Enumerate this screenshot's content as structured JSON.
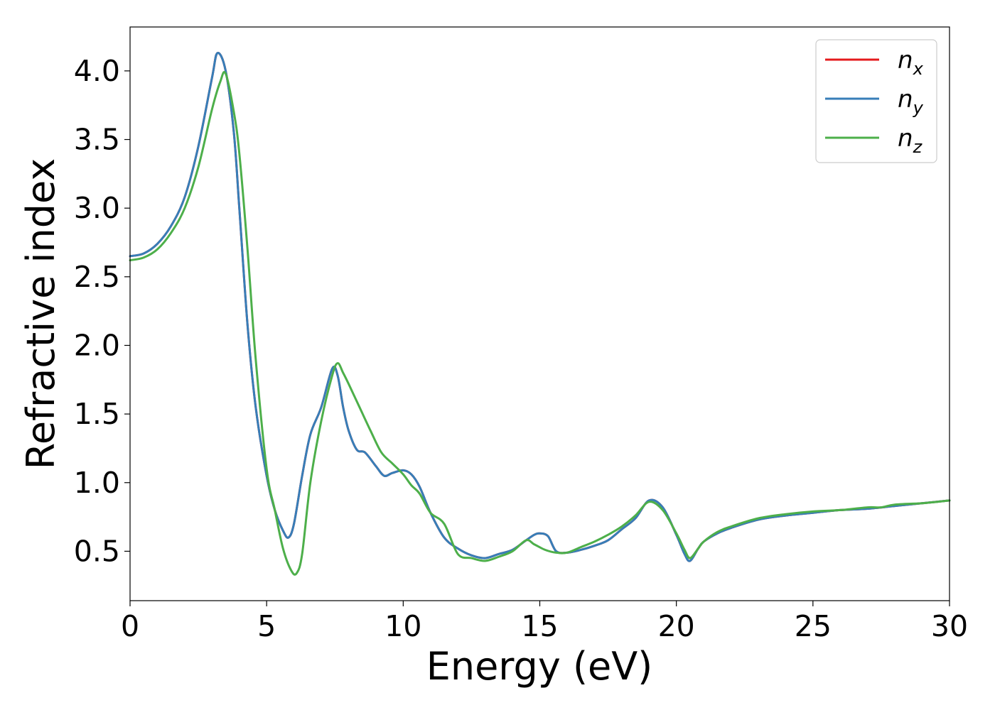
{
  "chart_data": {
    "type": "line",
    "title": "",
    "xlabel": "Energy (eV)",
    "ylabel": "Refractive index",
    "xlim": [
      0,
      30
    ],
    "ylim": [
      0.14,
      4.32
    ],
    "xticks": [
      0,
      5,
      10,
      15,
      20,
      25,
      30
    ],
    "xtick_labels": [
      "0",
      "5",
      "10",
      "15",
      "20",
      "25",
      "30"
    ],
    "yticks": [
      0.5,
      1.0,
      1.5,
      2.0,
      2.5,
      3.0,
      3.5,
      4.0
    ],
    "ytick_labels": [
      "0.5",
      "1.0",
      "1.5",
      "2.0",
      "2.5",
      "3.0",
      "3.5",
      "4.0"
    ],
    "grid": false,
    "legend_position": "top-right",
    "series": [
      {
        "name": "n_x",
        "label_base": "n",
        "label_sub": "x",
        "color": "#e41a1c",
        "x": [
          0,
          0.5,
          1.0,
          1.5,
          2.0,
          2.5,
          3.0,
          3.2,
          3.5,
          3.8,
          4.0,
          4.3,
          4.6,
          5.0,
          5.3,
          5.6,
          5.8,
          6.0,
          6.3,
          6.6,
          7.0,
          7.4,
          7.6,
          7.8,
          8.0,
          8.3,
          8.6,
          9.0,
          9.3,
          9.6,
          10.0,
          10.3,
          10.6,
          11.0,
          11.5,
          12.0,
          12.5,
          13.0,
          13.5,
          14.0,
          14.5,
          14.8,
          15.0,
          15.3,
          15.6,
          16.0,
          16.5,
          17.0,
          17.5,
          18.0,
          18.5,
          19.0,
          19.5,
          20.0,
          20.3,
          20.5,
          20.8,
          21.0,
          21.5,
          22.0,
          23.0,
          24.0,
          25.0,
          26.0,
          27.0,
          28.0,
          29.0,
          30.0
        ],
        "y": [
          2.65,
          2.67,
          2.74,
          2.87,
          3.08,
          3.45,
          3.95,
          4.13,
          4.0,
          3.55,
          3.0,
          2.15,
          1.55,
          1.05,
          0.8,
          0.65,
          0.6,
          0.7,
          1.05,
          1.35,
          1.55,
          1.83,
          1.78,
          1.55,
          1.38,
          1.24,
          1.22,
          1.12,
          1.05,
          1.07,
          1.09,
          1.06,
          0.97,
          0.78,
          0.6,
          0.52,
          0.47,
          0.45,
          0.48,
          0.51,
          0.58,
          0.62,
          0.63,
          0.61,
          0.5,
          0.49,
          0.51,
          0.54,
          0.58,
          0.66,
          0.74,
          0.87,
          0.82,
          0.62,
          0.48,
          0.43,
          0.52,
          0.57,
          0.63,
          0.67,
          0.73,
          0.76,
          0.78,
          0.8,
          0.81,
          0.83,
          0.85,
          0.87
        ]
      },
      {
        "name": "n_y",
        "label_base": "n",
        "label_sub": "y",
        "color": "#377eb8",
        "x": [
          0,
          0.5,
          1.0,
          1.5,
          2.0,
          2.5,
          3.0,
          3.2,
          3.5,
          3.8,
          4.0,
          4.3,
          4.6,
          5.0,
          5.3,
          5.6,
          5.8,
          6.0,
          6.3,
          6.6,
          7.0,
          7.4,
          7.6,
          7.8,
          8.0,
          8.3,
          8.6,
          9.0,
          9.3,
          9.6,
          10.0,
          10.3,
          10.6,
          11.0,
          11.5,
          12.0,
          12.5,
          13.0,
          13.5,
          14.0,
          14.5,
          14.8,
          15.0,
          15.3,
          15.6,
          16.0,
          16.5,
          17.0,
          17.5,
          18.0,
          18.5,
          19.0,
          19.5,
          20.0,
          20.3,
          20.5,
          20.8,
          21.0,
          21.5,
          22.0,
          23.0,
          24.0,
          25.0,
          26.0,
          27.0,
          28.0,
          29.0,
          30.0
        ],
        "y": [
          2.65,
          2.67,
          2.74,
          2.87,
          3.08,
          3.45,
          3.95,
          4.13,
          4.0,
          3.55,
          3.0,
          2.15,
          1.55,
          1.05,
          0.8,
          0.65,
          0.6,
          0.7,
          1.05,
          1.35,
          1.55,
          1.83,
          1.78,
          1.55,
          1.38,
          1.24,
          1.22,
          1.12,
          1.05,
          1.07,
          1.09,
          1.06,
          0.97,
          0.78,
          0.6,
          0.52,
          0.47,
          0.45,
          0.48,
          0.51,
          0.58,
          0.62,
          0.63,
          0.61,
          0.5,
          0.49,
          0.51,
          0.54,
          0.58,
          0.66,
          0.74,
          0.87,
          0.82,
          0.62,
          0.48,
          0.43,
          0.52,
          0.57,
          0.63,
          0.67,
          0.73,
          0.76,
          0.78,
          0.8,
          0.81,
          0.83,
          0.85,
          0.87
        ]
      },
      {
        "name": "n_z",
        "label_base": "n",
        "label_sub": "z",
        "color": "#4daf4a",
        "x": [
          0,
          0.5,
          1.0,
          1.5,
          2.0,
          2.5,
          3.0,
          3.3,
          3.5,
          3.8,
          4.0,
          4.3,
          4.6,
          5.0,
          5.3,
          5.6,
          5.9,
          6.1,
          6.3,
          6.6,
          7.0,
          7.4,
          7.6,
          7.8,
          8.0,
          8.4,
          8.8,
          9.2,
          9.6,
          10.0,
          10.3,
          10.6,
          11.0,
          11.5,
          12.0,
          12.5,
          13.0,
          13.5,
          14.0,
          14.5,
          14.8,
          15.2,
          15.6,
          16.0,
          16.5,
          17.0,
          17.5,
          18.0,
          18.5,
          19.0,
          19.5,
          20.0,
          20.3,
          20.5,
          20.8,
          21.0,
          21.5,
          22.0,
          23.0,
          24.0,
          25.0,
          26.0,
          27.0,
          27.5,
          28.0,
          29.0,
          30.0
        ],
        "y": [
          2.62,
          2.64,
          2.7,
          2.82,
          3.0,
          3.3,
          3.72,
          3.92,
          3.98,
          3.7,
          3.4,
          2.7,
          1.9,
          1.1,
          0.8,
          0.52,
          0.36,
          0.34,
          0.48,
          1.0,
          1.45,
          1.78,
          1.87,
          1.8,
          1.72,
          1.55,
          1.38,
          1.22,
          1.14,
          1.06,
          0.98,
          0.92,
          0.78,
          0.7,
          0.48,
          0.45,
          0.43,
          0.46,
          0.5,
          0.58,
          0.55,
          0.51,
          0.49,
          0.49,
          0.53,
          0.57,
          0.62,
          0.68,
          0.76,
          0.86,
          0.8,
          0.63,
          0.51,
          0.45,
          0.52,
          0.57,
          0.64,
          0.68,
          0.74,
          0.77,
          0.79,
          0.8,
          0.82,
          0.82,
          0.84,
          0.85,
          0.87
        ]
      }
    ]
  }
}
